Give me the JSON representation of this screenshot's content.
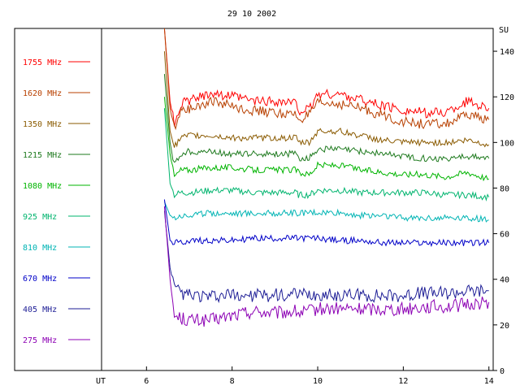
{
  "chart_data": {
    "type": "line",
    "title": "29 10 2002",
    "xlabel": "UT",
    "ylabel": "SU",
    "xlim": [
      4.95,
      14.1
    ],
    "ylim": [
      0,
      150
    ],
    "x_ticks": [
      6,
      8,
      10,
      12,
      14
    ],
    "y_ticks": [
      0,
      20,
      40,
      60,
      80,
      100,
      120,
      140
    ],
    "grid": false,
    "legend_position": "left",
    "colors": {
      "axes": "#000000",
      "background": "#ffffff"
    },
    "x": [
      6.42,
      6.55,
      6.65,
      6.8,
      7.0,
      7.5,
      8.0,
      8.5,
      9.0,
      9.5,
      9.55,
      9.8,
      10.0,
      10.5,
      11.0,
      11.5,
      12.0,
      12.5,
      13.0,
      13.5,
      14.0
    ],
    "series": [
      {
        "name": "1755 MHz",
        "color": "#ff0000",
        "values": [
          150,
          118,
          108,
          117,
          118,
          122,
          120,
          118,
          118,
          117,
          114,
          114,
          121,
          121,
          119,
          116,
          114,
          113,
          113,
          118,
          115
        ]
      },
      {
        "name": "1620 MHz",
        "color": "#b84000",
        "values": [
          150,
          115,
          106,
          114,
          115,
          118,
          116,
          114,
          113,
          112,
          110,
          112,
          117,
          117,
          115,
          112,
          109,
          108,
          108,
          112,
          110
        ]
      },
      {
        "name": "1350 MHz",
        "color": "#8a5a00",
        "values": [
          140,
          105,
          98,
          102,
          103,
          103,
          102,
          102,
          102,
          102,
          100,
          100,
          105,
          105,
          103,
          101,
          100,
          100,
          100,
          101,
          99
        ]
      },
      {
        "name": "1215 MHz",
        "color": "#1e7a1e",
        "values": [
          130,
          100,
          90,
          95,
          96,
          96,
          95,
          95,
          95,
          95,
          93,
          93,
          97,
          97,
          96,
          95,
          94,
          93,
          93,
          94,
          93
        ]
      },
      {
        "name": "1080 MHz",
        "color": "#00b400",
        "values": [
          120,
          95,
          85,
          88,
          88,
          89,
          89,
          88,
          88,
          88,
          87,
          86,
          90,
          90,
          88,
          87,
          86,
          86,
          85,
          87,
          84
        ]
      },
      {
        "name": "925 MHz",
        "color": "#00b46e",
        "values": [
          115,
          82,
          77,
          78,
          78,
          79,
          79,
          78,
          78,
          78,
          77,
          77,
          79,
          79,
          78,
          78,
          78,
          78,
          77,
          77,
          76
        ]
      },
      {
        "name": "810 MHz",
        "color": "#00b4b4",
        "values": [
          74,
          68,
          67,
          68,
          68,
          69,
          69,
          69,
          69,
          69,
          69,
          69,
          69,
          69,
          68,
          68,
          67,
          67,
          67,
          67,
          66
        ]
      },
      {
        "name": "670 MHz",
        "color": "#0000c8",
        "values": [
          75,
          57,
          56,
          56,
          57,
          57,
          57,
          58,
          58,
          58,
          58,
          58,
          58,
          57,
          57,
          56,
          56,
          56,
          56,
          56,
          56
        ]
      },
      {
        "name": "405 MHz",
        "color": "#1e1e96",
        "values": [
          70,
          45,
          36,
          34,
          33,
          32,
          33,
          33,
          33,
          33,
          33,
          33,
          33,
          33,
          33,
          33,
          33,
          34,
          34,
          35,
          35
        ]
      },
      {
        "name": "275 MHz",
        "color": "#8c00b4",
        "values": [
          72,
          40,
          24,
          23,
          22,
          22,
          24,
          26,
          25,
          26,
          25,
          26,
          27,
          27,
          27,
          27,
          27,
          28,
          28,
          29,
          30
        ]
      }
    ]
  }
}
